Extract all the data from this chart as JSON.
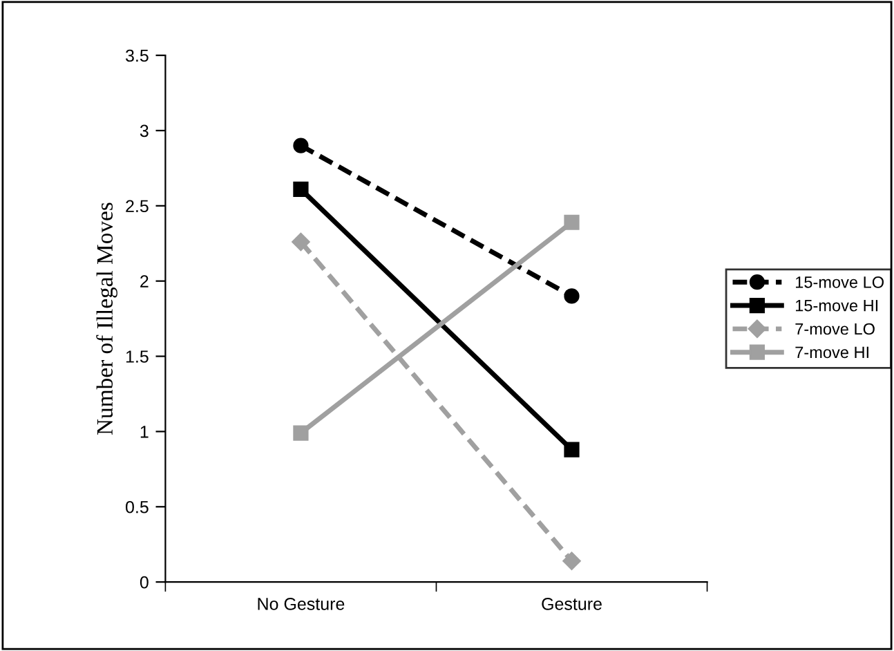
{
  "chart_data": {
    "type": "line",
    "ylabel": "Number of Illegal Moves",
    "categories": [
      "No Gesture",
      "Gesture"
    ],
    "ylim": [
      0,
      3.5
    ],
    "yticks": [
      0,
      0.5,
      1,
      1.5,
      2,
      2.5,
      3,
      3.5
    ],
    "grid": false,
    "legend": "right",
    "series": [
      {
        "name": "15-move LO",
        "color": "#000000",
        "values": [
          2.9,
          1.9
        ],
        "marker": "circle",
        "line_style": "dashed"
      },
      {
        "name": "15-move HI",
        "color": "#000000",
        "values": [
          2.61,
          0.88
        ],
        "marker": "square",
        "line_style": "solid"
      },
      {
        "name": "7-move LO",
        "color": "#a0a0a0",
        "values": [
          2.26,
          0.14
        ],
        "marker": "diamond",
        "line_style": "dashed"
      },
      {
        "name": "7-move HI",
        "color": "#a0a0a0",
        "values": [
          0.99,
          2.39
        ],
        "marker": "square",
        "line_style": "solid"
      }
    ]
  }
}
